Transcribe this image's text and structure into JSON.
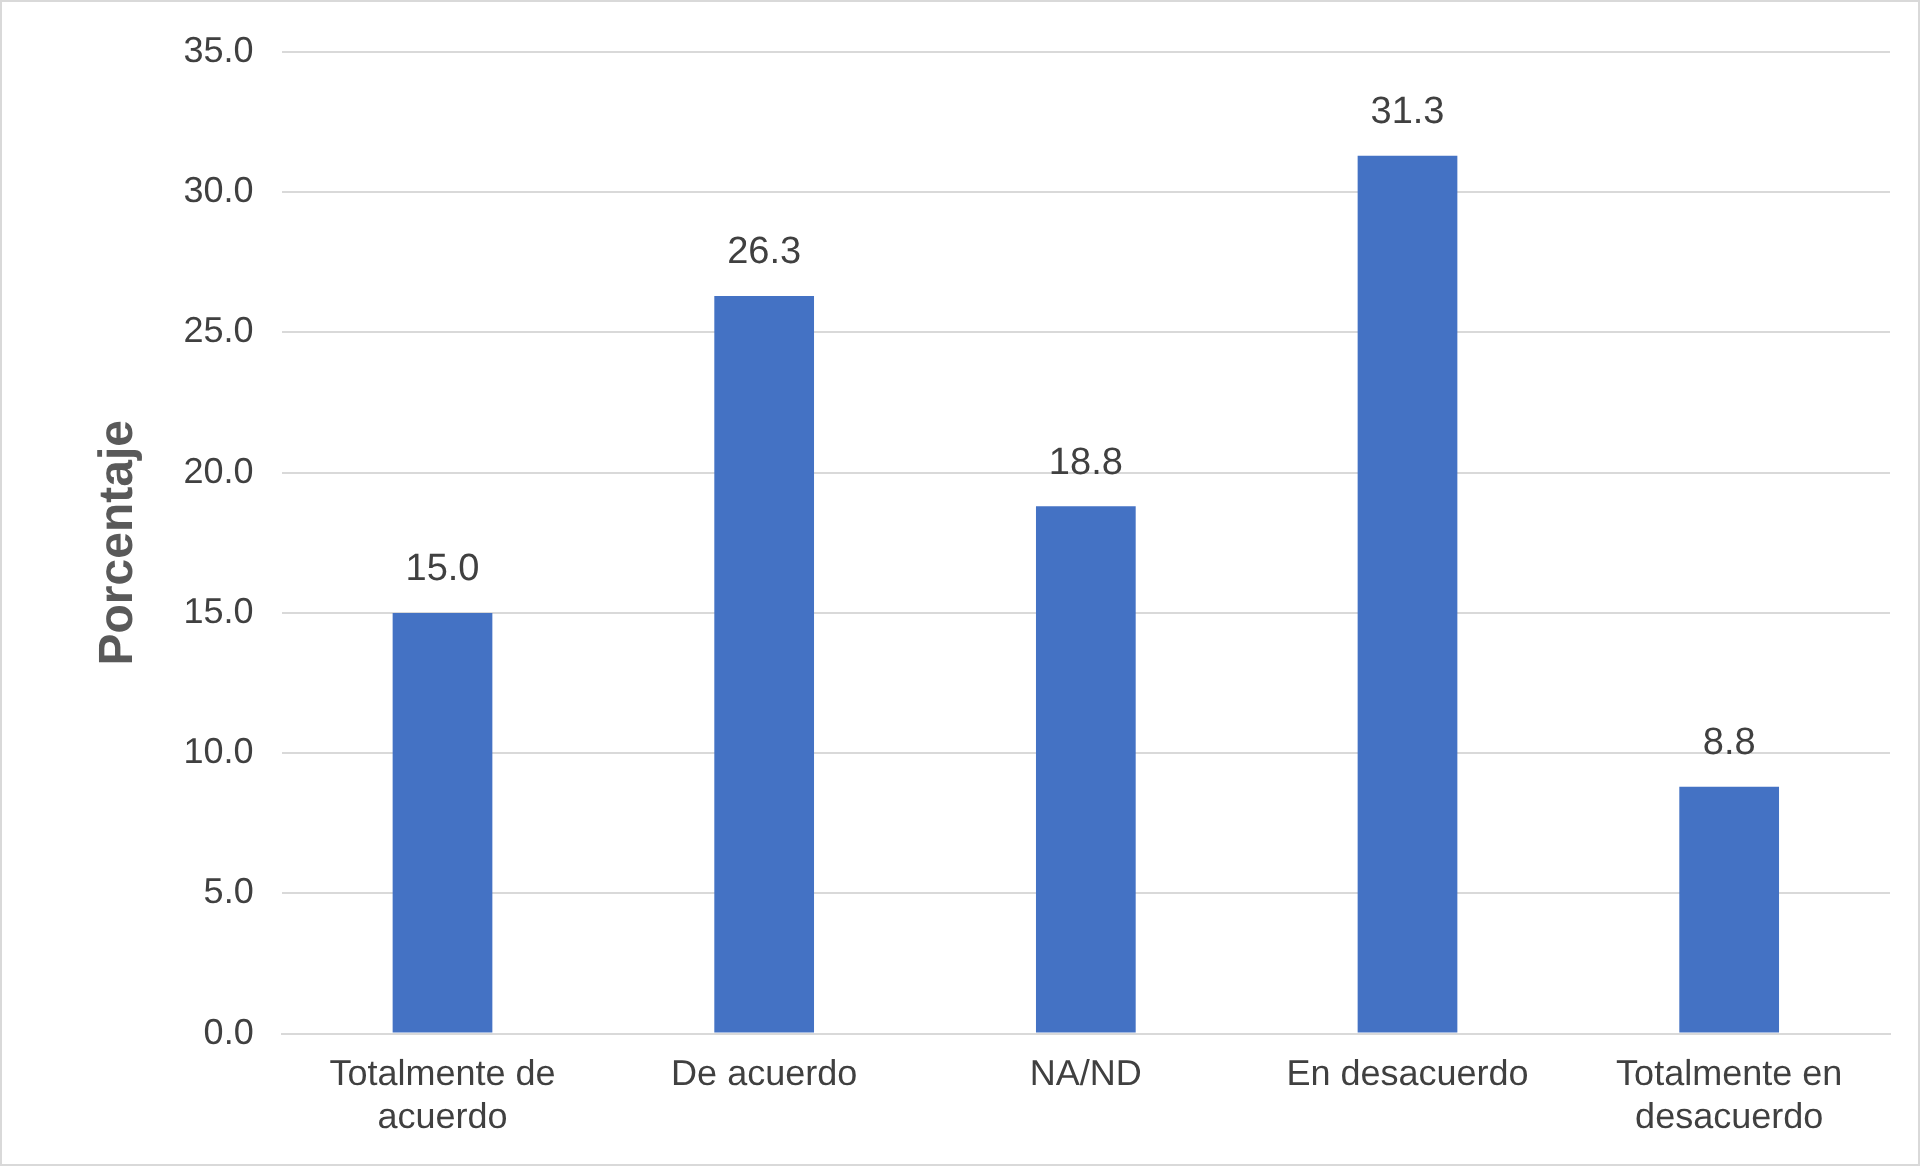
{
  "chart_data": {
    "type": "bar",
    "ylabel": "Porcentaje",
    "categories": [
      "Totalmente de acuerdo",
      "De acuerdo",
      "NA/ND",
      "En desacuerdo",
      "Totalmente en desacuerdo"
    ],
    "values": [
      15.0,
      26.3,
      18.8,
      31.3,
      8.8
    ],
    "value_labels": [
      "15.0",
      "26.3",
      "18.8",
      "31.3",
      "8.8"
    ],
    "color": "#4472c4",
    "ylim": [
      0,
      35
    ],
    "yticks": [
      {
        "value": 0,
        "label": "0.0"
      },
      {
        "value": 5,
        "label": "5.0"
      },
      {
        "value": 10,
        "label": "10.0"
      },
      {
        "value": 15,
        "label": "15.0"
      },
      {
        "value": 20,
        "label": "20.0"
      },
      {
        "value": 25,
        "label": "25.0"
      },
      {
        "value": 30,
        "label": "30.0"
      },
      {
        "value": 35,
        "label": "35.0"
      }
    ],
    "grid": "y",
    "legend": false
  }
}
